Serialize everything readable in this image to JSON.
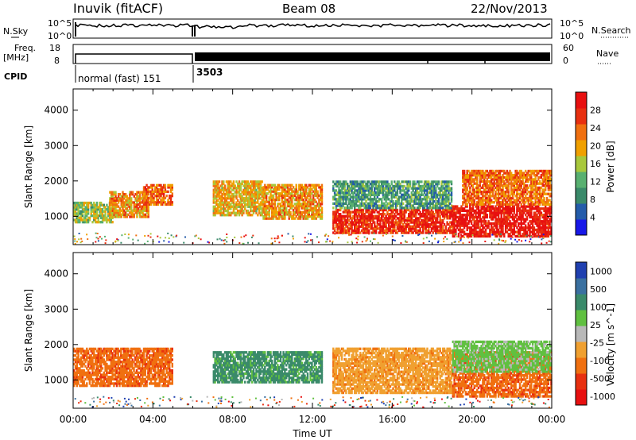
{
  "header": {
    "title": "Inuvik (fitACF)",
    "beam": "Beam 08",
    "date": "22/Nov/2013"
  },
  "summary": {
    "nsky_label": "N.Sky",
    "nsearch_label": "N.Search",
    "freq_label": "Freq.",
    "freq_unit": "[MHz]",
    "nave_label": "Nave",
    "cpid_label": "CPID",
    "noise_ticks_left": [
      "10^5",
      "10^0"
    ],
    "noise_ticks_right": [
      "10^5",
      "10^0"
    ],
    "freq_ticks": [
      "18",
      "8"
    ],
    "nave_ticks": [
      "60",
      "0"
    ],
    "cpid_segments": [
      {
        "label": "normal (fast) 151",
        "start_hour": 0.0,
        "end_hour": 6.0
      },
      {
        "label": "3503",
        "start_hour": 6.0,
        "end_hour": 24.0
      }
    ]
  },
  "time_axis": {
    "label": "Time UT",
    "ticks": [
      "00:00",
      "04:00",
      "08:00",
      "12:00",
      "16:00",
      "20:00",
      "00:00"
    ]
  },
  "chart_data": [
    {
      "type": "heatmap",
      "title": "",
      "ylabel": "Slant Range [km]",
      "xlabel": "",
      "xlim_hours": [
        0,
        24
      ],
      "ylim": [
        200,
        4600
      ],
      "yticks": [
        "1000",
        "2000",
        "3000",
        "4000"
      ],
      "colorbar_label": "Power [dB]",
      "colorbar_ticks": [
        "4",
        "8",
        "12",
        "16",
        "20",
        "24",
        "28"
      ],
      "colors": [
        "#1818e8",
        "#245caa",
        "#3a8a6a",
        "#58b070",
        "#a8c83c",
        "#f0a000",
        "#f07010",
        "#e83010",
        "#e81010"
      ],
      "regions": [
        {
          "t0": 0.0,
          "t1": 2.0,
          "r0": 800,
          "r1": 1400,
          "value": 14
        },
        {
          "t0": 1.8,
          "t1": 3.8,
          "r0": 950,
          "r1": 1700,
          "value": 20
        },
        {
          "t0": 3.5,
          "t1": 5.0,
          "r0": 1300,
          "r1": 1900,
          "value": 22
        },
        {
          "t0": 7.0,
          "t1": 9.5,
          "r0": 1000,
          "r1": 2000,
          "value": 18
        },
        {
          "t0": 9.5,
          "t1": 12.5,
          "r0": 900,
          "r1": 1900,
          "value": 20
        },
        {
          "t0": 13.0,
          "t1": 19.0,
          "r0": 500,
          "r1": 1200,
          "value": 26
        },
        {
          "t0": 13.0,
          "t1": 19.0,
          "r0": 1200,
          "r1": 2000,
          "value": 10
        },
        {
          "t0": 19.0,
          "t1": 24.0,
          "r0": 400,
          "r1": 1300,
          "value": 28
        },
        {
          "t0": 19.5,
          "t1": 24.0,
          "r0": 1300,
          "r1": 2300,
          "value": 22
        }
      ]
    },
    {
      "type": "heatmap",
      "title": "",
      "ylabel": "Slant Range [km]",
      "xlabel": "Time UT",
      "xlim_hours": [
        0,
        24
      ],
      "ylim": [
        200,
        4600
      ],
      "yticks": [
        "1000",
        "2000",
        "3000",
        "4000"
      ],
      "colorbar_label": "Velocity [m s^-1]",
      "colorbar_ticks": [
        "1000",
        "500",
        "100",
        "25",
        "-25",
        "-100",
        "-500",
        "-1000"
      ],
      "colors": [
        "#2040b0",
        "#3a70a0",
        "#3a8a6a",
        "#60c040",
        "#b8b8b8",
        "#f0a030",
        "#f07010",
        "#e83010",
        "#e81010"
      ],
      "regions": [
        {
          "t0": 0.0,
          "t1": 5.0,
          "r0": 800,
          "r1": 1900,
          "value": -500
        },
        {
          "t0": 7.0,
          "t1": 12.5,
          "r0": 900,
          "r1": 1800,
          "value": 100
        },
        {
          "t0": 13.0,
          "t1": 19.0,
          "r0": 600,
          "r1": 1900,
          "value": -100
        },
        {
          "t0": 19.0,
          "t1": 24.0,
          "r0": 500,
          "r1": 1800,
          "value": -500
        },
        {
          "t0": 19.0,
          "t1": 24.0,
          "r0": 1200,
          "r1": 2100,
          "value": 25
        }
      ]
    }
  ]
}
